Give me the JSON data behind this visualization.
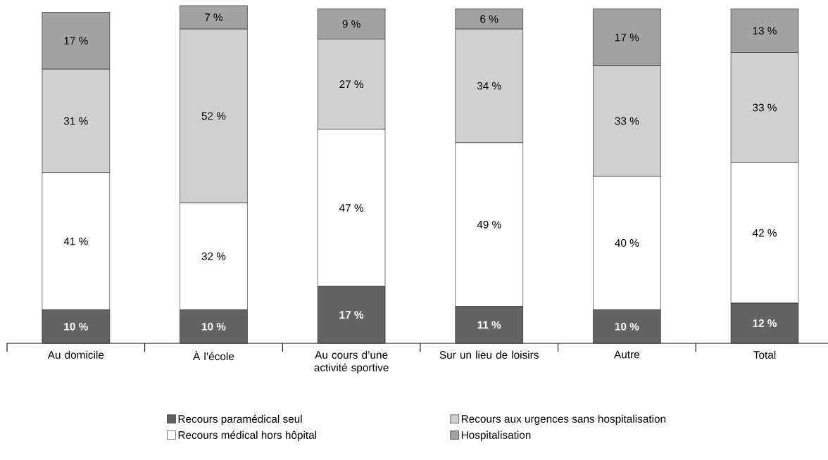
{
  "chart_data": {
    "type": "bar",
    "stacked": true,
    "legend": "bottom",
    "categories": [
      "Au domicile",
      "À l’école",
      "Au cours d’une activité sportive",
      "Sur un lieu de loisirs",
      "Autre",
      "Total"
    ],
    "series": [
      {
        "name": "Recours paramédical seul",
        "color": "#636363",
        "values": [
          10,
          10,
          17,
          11,
          10,
          12
        ],
        "value_labels": [
          "10 %",
          "10 %",
          "17 %",
          "11 %",
          "10 %",
          "12 %"
        ]
      },
      {
        "name": "Recours médical hors hôpital",
        "color": "#ffffff",
        "values": [
          41,
          32,
          47,
          49,
          40,
          42
        ],
        "value_labels": [
          "41 %",
          "32 %",
          "47 %",
          "49 %",
          "40 %",
          "42 %"
        ]
      },
      {
        "name": "Recours aux urgences sans hospitalisation",
        "color": "#d0d0d0",
        "values": [
          31,
          52,
          27,
          34,
          33,
          33
        ],
        "value_labels": [
          "31 %",
          "52 %",
          "27 %",
          "34 %",
          "33 %",
          "33 %"
        ]
      },
      {
        "name": "Hospitalisation",
        "color": "#a3a3a3",
        "values": [
          17,
          7,
          9,
          6,
          17,
          13
        ],
        "value_labels": [
          "17 %",
          "7 %",
          "9 %",
          "6 %",
          "17 %",
          "13 %"
        ]
      }
    ]
  }
}
